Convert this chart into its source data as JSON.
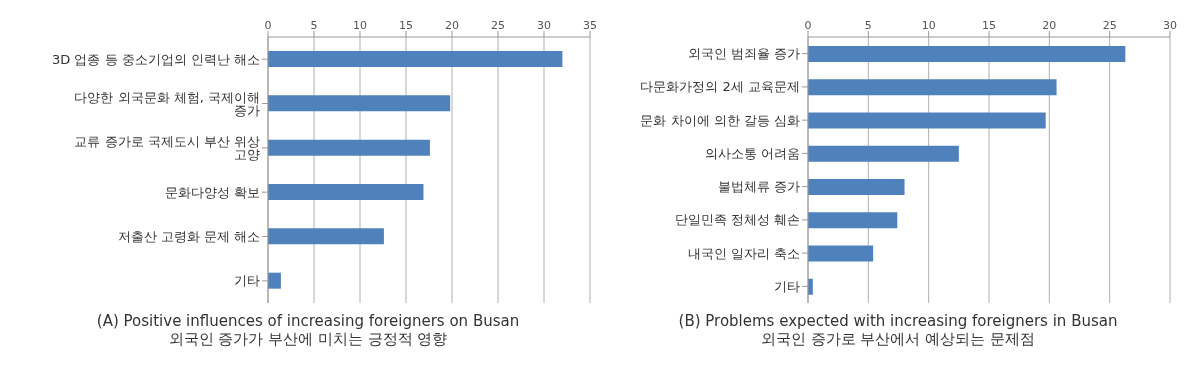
{
  "chart_data": [
    {
      "type": "bar",
      "orientation": "horizontal",
      "title": "(A) Positive influences of increasing foreigners on Busan",
      "subtitle": "외국인 증가가 부산에 미치는 긍정적 영향",
      "categories": [
        "3D 업종 등 중소기업의 인력난 해소",
        "다양한 외국문화 체험, 국제이해 증가",
        "교류 증가로 국제도시 부산 위상 고양",
        "문화다양성 확보",
        "저출산 고령화 문제 해소",
        "기타"
      ],
      "values": [
        32,
        19.8,
        17.6,
        16.9,
        12.6,
        1.4
      ],
      "color": "#4f81bd",
      "xlim": [
        0,
        35
      ],
      "xticks": [
        0,
        5,
        10,
        15,
        20,
        25,
        30,
        35
      ],
      "grid": "x"
    },
    {
      "type": "bar",
      "orientation": "horizontal",
      "title": "(B) Problems expected with increasing foreigners in Busan",
      "subtitle": "외국인 증가로 부산에서 예상되는 문제점",
      "categories": [
        "외국인 범죄율 증가",
        "다문화가정의 2세 교육문제",
        "문화 차이에 의한 갈등 심화",
        "의사소통 어려움",
        "불법체류 증가",
        "단일민족 정체성 훼손",
        "내국인 일자리 축소",
        "기타"
      ],
      "values": [
        26.3,
        20.6,
        19.7,
        12.5,
        8.0,
        7.4,
        5.4,
        0.4
      ],
      "color": "#4f81bd",
      "xlim": [
        0,
        30
      ],
      "xticks": [
        0,
        5,
        10,
        15,
        20,
        25,
        30
      ],
      "grid": "x"
    }
  ]
}
